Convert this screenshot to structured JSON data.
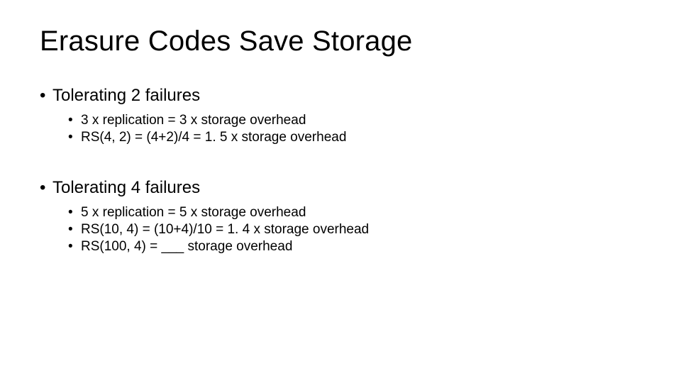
{
  "slide": {
    "title": "Erasure Codes Save Storage",
    "sections": [
      {
        "heading": "Tolerating 2 failures",
        "items": [
          "3 x replication = 3 x storage overhead",
          "RS(4, 2) = (4+2)/4 = 1. 5 x storage overhead"
        ]
      },
      {
        "heading": "Tolerating 4 failures",
        "items": [
          "5 x replication = 5 x storage overhead",
          "RS(10, 4) = (10+4)/10 = 1. 4 x storage overhead",
          "RS(100, 4) = ___ storage overhead"
        ]
      }
    ]
  },
  "style": {
    "background_color": "#ffffff",
    "text_color": "#000000",
    "title_fontsize": 40,
    "l1_fontsize": 24,
    "l2_fontsize": 19,
    "font_family": "Arial"
  }
}
